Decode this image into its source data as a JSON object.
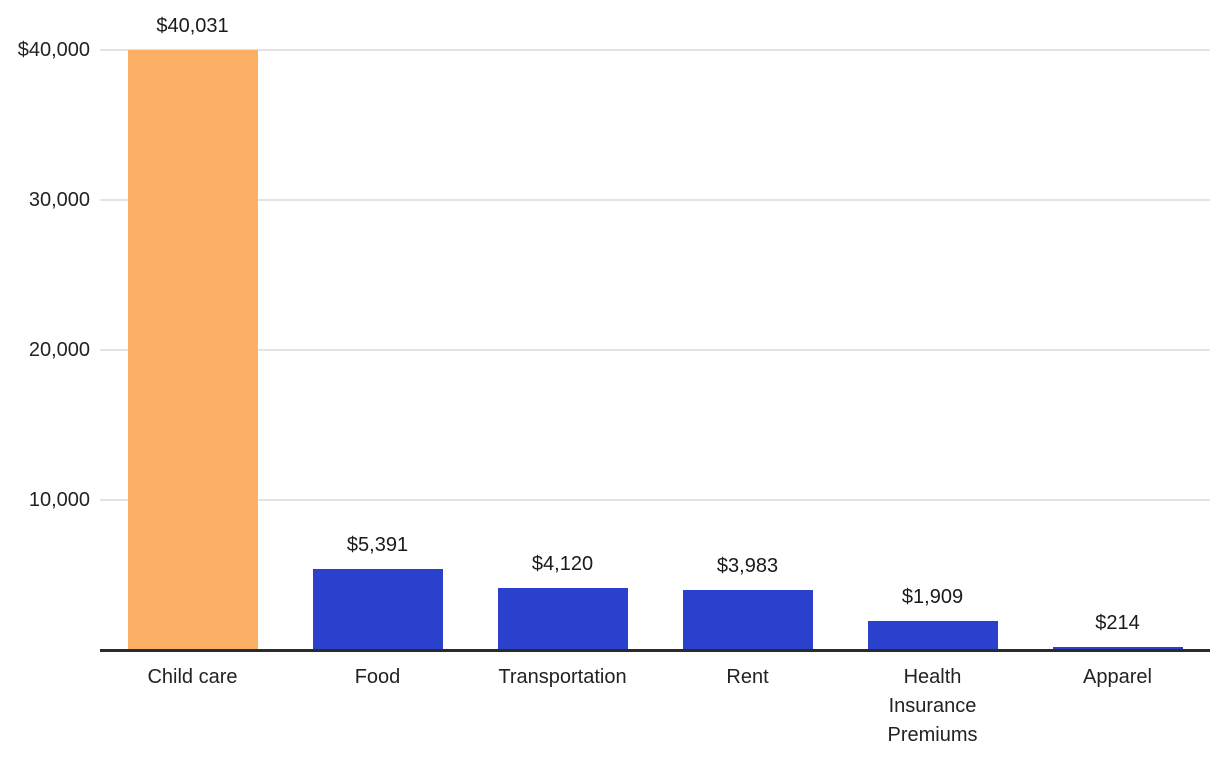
{
  "chart_data": {
    "type": "bar",
    "title": "",
    "categories": [
      "Child care",
      "Food",
      "Transportation",
      "Rent",
      "Health Insurance Premiums",
      "Apparel"
    ],
    "category_display": [
      "Child care",
      "Food",
      "Transportation",
      "Rent",
      "Health\nInsurance\nPremiums",
      "Apparel"
    ],
    "values": [
      40031,
      5391,
      4120,
      3983,
      1909,
      214
    ],
    "value_labels": [
      "$40,031",
      "$5,391",
      "$4,120",
      "$3,983",
      "$1,909",
      "$214"
    ],
    "bar_colors": [
      "#FBB066",
      "#2B41CE",
      "#2B41CE",
      "#2B41CE",
      "#2B41CE",
      "#2B41CE"
    ],
    "highlighted_category": "Child care",
    "y_axis": {
      "ticks": [
        {
          "value": 40000,
          "label": "$40,000"
        },
        {
          "value": 30000,
          "label": "30,000"
        },
        {
          "value": 20000,
          "label": "20,000"
        },
        {
          "value": 10000,
          "label": "10,000"
        }
      ],
      "ylim": [
        0,
        43300
      ],
      "grid": true
    },
    "legend": null,
    "colors": {
      "highlight": "#FBB066",
      "base": "#2B41CE",
      "grid": "#E4E4E4",
      "axis": "#2B2B2B",
      "text": "#222222"
    }
  }
}
